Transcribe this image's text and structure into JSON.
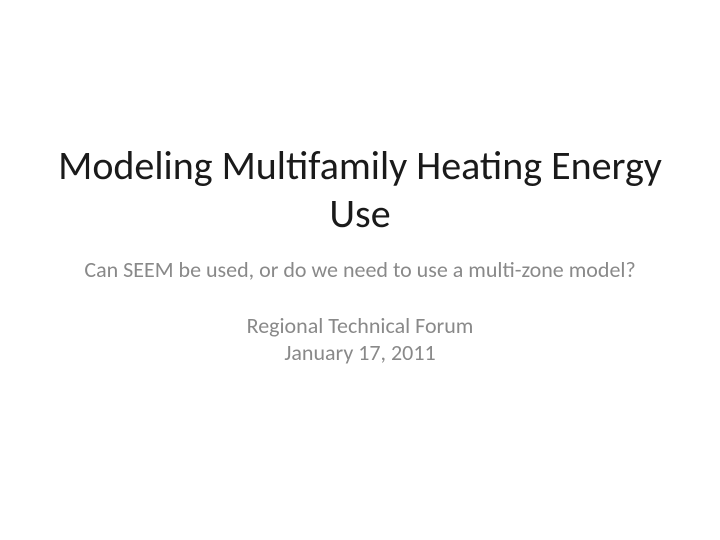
{
  "slide": {
    "title": "Modeling Multifamily Heating Energy Use",
    "subtitle": "Can SEEM be used, or do we need to use a multi-zone model?",
    "forum": "Regional Technical Forum",
    "date": "January 17, 2011"
  },
  "styles": {
    "background_color": "#ffffff",
    "title_color": "#1a1a1a",
    "subtitle_color": "#898989",
    "title_fontsize": 40,
    "subtitle_fontsize": 22,
    "font_family": "Calibri"
  }
}
